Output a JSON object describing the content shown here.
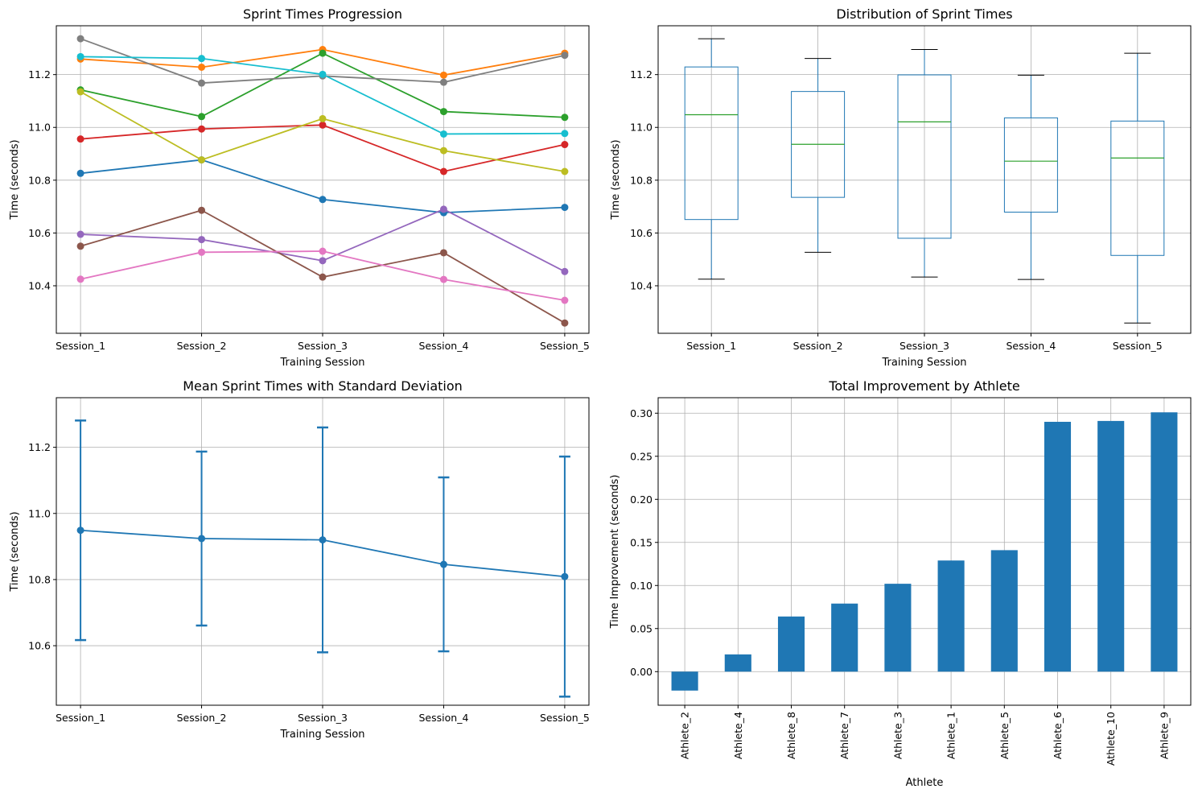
{
  "chart_data": [
    {
      "type": "line",
      "title": "Sprint Times Progression",
      "xlabel": "Training Session",
      "ylabel": "Time (seconds)",
      "categories": [
        "Session_1",
        "Session_2",
        "Session_3",
        "Session_4",
        "Session_5"
      ],
      "ylim": [
        10.22,
        11.385
      ],
      "yticks": [
        "10.4",
        "10.6",
        "10.8",
        "11.0",
        "11.2"
      ],
      "ytick_values": [
        10.4,
        10.6,
        10.8,
        11.0,
        11.2
      ],
      "grid": true,
      "series": [
        {
          "color": "#1f77b4",
          "values": [
            10.826,
            10.877,
            10.727,
            10.677,
            10.697
          ]
        },
        {
          "color": "#ff7f0e",
          "values": [
            11.259,
            11.228,
            11.295,
            11.198,
            11.281
          ]
        },
        {
          "color": "#2ca02c",
          "values": [
            11.142,
            11.041,
            11.281,
            11.06,
            11.038
          ]
        },
        {
          "color": "#d62728",
          "values": [
            10.956,
            10.994,
            11.009,
            10.833,
            10.935
          ]
        },
        {
          "color": "#9467bd",
          "values": [
            10.595,
            10.575,
            10.495,
            10.69,
            10.454
          ]
        },
        {
          "color": "#8c564b",
          "values": [
            10.55,
            10.686,
            10.433,
            10.525,
            10.259
          ]
        },
        {
          "color": "#e377c2",
          "values": [
            10.425,
            10.527,
            10.531,
            10.424,
            10.345
          ]
        },
        {
          "color": "#7f7f7f",
          "values": [
            11.336,
            11.168,
            11.195,
            11.171,
            11.273
          ]
        },
        {
          "color": "#bcbd22",
          "values": [
            11.135,
            10.877,
            11.033,
            10.912,
            10.833
          ]
        },
        {
          "color": "#17becf",
          "values": [
            11.268,
            11.261,
            11.201,
            10.975,
            10.977
          ]
        }
      ]
    },
    {
      "type": "box",
      "title": "Distribution of Sprint Times",
      "xlabel": "Training Session",
      "ylabel": "Time (seconds)",
      "categories": [
        "Session_1",
        "Session_2",
        "Session_3",
        "Session_4",
        "Session_5"
      ],
      "ylim": [
        10.22,
        11.385
      ],
      "yticks": [
        "10.4",
        "10.6",
        "10.8",
        "11.0",
        "11.2"
      ],
      "ytick_values": [
        10.4,
        10.6,
        10.8,
        11.0,
        11.2
      ],
      "grid": true,
      "box_color": "#1f77b4",
      "median_color": "#2ca02c",
      "boxes": [
        {
          "min": 10.425,
          "q1": 10.651,
          "median": 11.048,
          "q3": 11.229,
          "max": 11.336
        },
        {
          "min": 10.527,
          "q1": 10.735,
          "median": 10.936,
          "q3": 11.136,
          "max": 11.261
        },
        {
          "min": 10.433,
          "q1": 10.58,
          "median": 11.021,
          "q3": 11.199,
          "max": 11.295
        },
        {
          "min": 10.424,
          "q1": 10.679,
          "median": 10.872,
          "q3": 11.036,
          "max": 11.198
        },
        {
          "min": 10.259,
          "q1": 10.515,
          "median": 10.884,
          "q3": 11.024,
          "max": 11.281
        }
      ]
    },
    {
      "type": "errorbar",
      "title": "Mean Sprint Times with Standard Deviation",
      "xlabel": "Training Session",
      "ylabel": "Time (seconds)",
      "categories": [
        "Session_1",
        "Session_2",
        "Session_3",
        "Session_4",
        "Session_5"
      ],
      "ylim": [
        10.42,
        11.35
      ],
      "yticks": [
        "10.6",
        "10.8",
        "11.0",
        "11.2"
      ],
      "ytick_values": [
        10.6,
        10.8,
        11.0,
        11.2
      ],
      "grid": true,
      "color": "#1f77b4",
      "means": [
        10.949,
        10.924,
        10.92,
        10.846,
        10.809
      ],
      "std": [
        0.332,
        0.263,
        0.34,
        0.263,
        0.363
      ]
    },
    {
      "type": "bar",
      "title": "Total Improvement by Athlete",
      "xlabel": "Athlete",
      "ylabel": "Time Improvement (seconds)",
      "categories": [
        "Athlete_2",
        "Athlete_4",
        "Athlete_8",
        "Athlete_7",
        "Athlete_3",
        "Athlete_1",
        "Athlete_5",
        "Athlete_6",
        "Athlete_10",
        "Athlete_9"
      ],
      "values": [
        -0.022,
        0.02,
        0.064,
        0.079,
        0.102,
        0.129,
        0.141,
        0.29,
        0.291,
        0.301
      ],
      "ylim": [
        -0.039,
        0.318
      ],
      "yticks": [
        "0.00",
        "0.05",
        "0.10",
        "0.15",
        "0.20",
        "0.25",
        "0.30"
      ],
      "ytick_values": [
        0.0,
        0.05,
        0.1,
        0.15,
        0.2,
        0.25,
        0.3
      ],
      "grid": true,
      "color": "#1f77b4"
    }
  ]
}
